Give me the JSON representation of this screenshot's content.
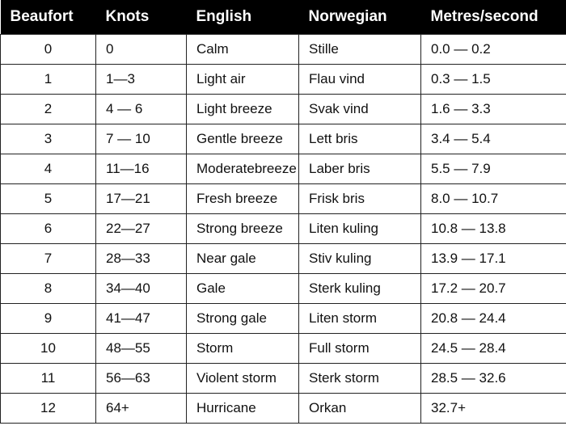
{
  "table": {
    "headers": [
      "Beaufort",
      "Knots",
      "English",
      "Norwegian",
      "Metres/second"
    ],
    "rows": [
      [
        "0",
        "0",
        "Calm",
        "Stille",
        "0.0 — 0.2"
      ],
      [
        "1",
        "1—3",
        "Light air",
        "Flau vind",
        "0.3 — 1.5"
      ],
      [
        "2",
        "4 — 6",
        "Light breeze",
        "Svak vind",
        "1.6 — 3.3"
      ],
      [
        "3",
        "7 — 10",
        "Gentle breeze",
        "Lett bris",
        "3.4 — 5.4"
      ],
      [
        "4",
        "11—16",
        "Moderatebreeze",
        "Laber bris",
        "5.5 — 7.9"
      ],
      [
        "5",
        "17—21",
        "Fresh breeze",
        "Frisk bris",
        "8.0 — 10.7"
      ],
      [
        "6",
        "22—27",
        "Strong breeze",
        "Liten kuling",
        "10.8 — 13.8"
      ],
      [
        "7",
        "28—33",
        "Near gale",
        "Stiv kuling",
        "13.9 — 17.1"
      ],
      [
        "8",
        "34—40",
        "Gale",
        "Sterk kuling",
        "17.2 — 20.7"
      ],
      [
        "9",
        "41—47",
        "Strong gale",
        "Liten storm",
        "20.8 — 24.4"
      ],
      [
        "10",
        "48—55",
        "Storm",
        "Full storm",
        "24.5 — 28.4"
      ],
      [
        "11",
        "56—63",
        "Violent storm",
        "Sterk storm",
        "28.5 — 32.6"
      ],
      [
        "12",
        "64+",
        "Hurricane",
        "Orkan",
        "32.7+"
      ]
    ]
  }
}
